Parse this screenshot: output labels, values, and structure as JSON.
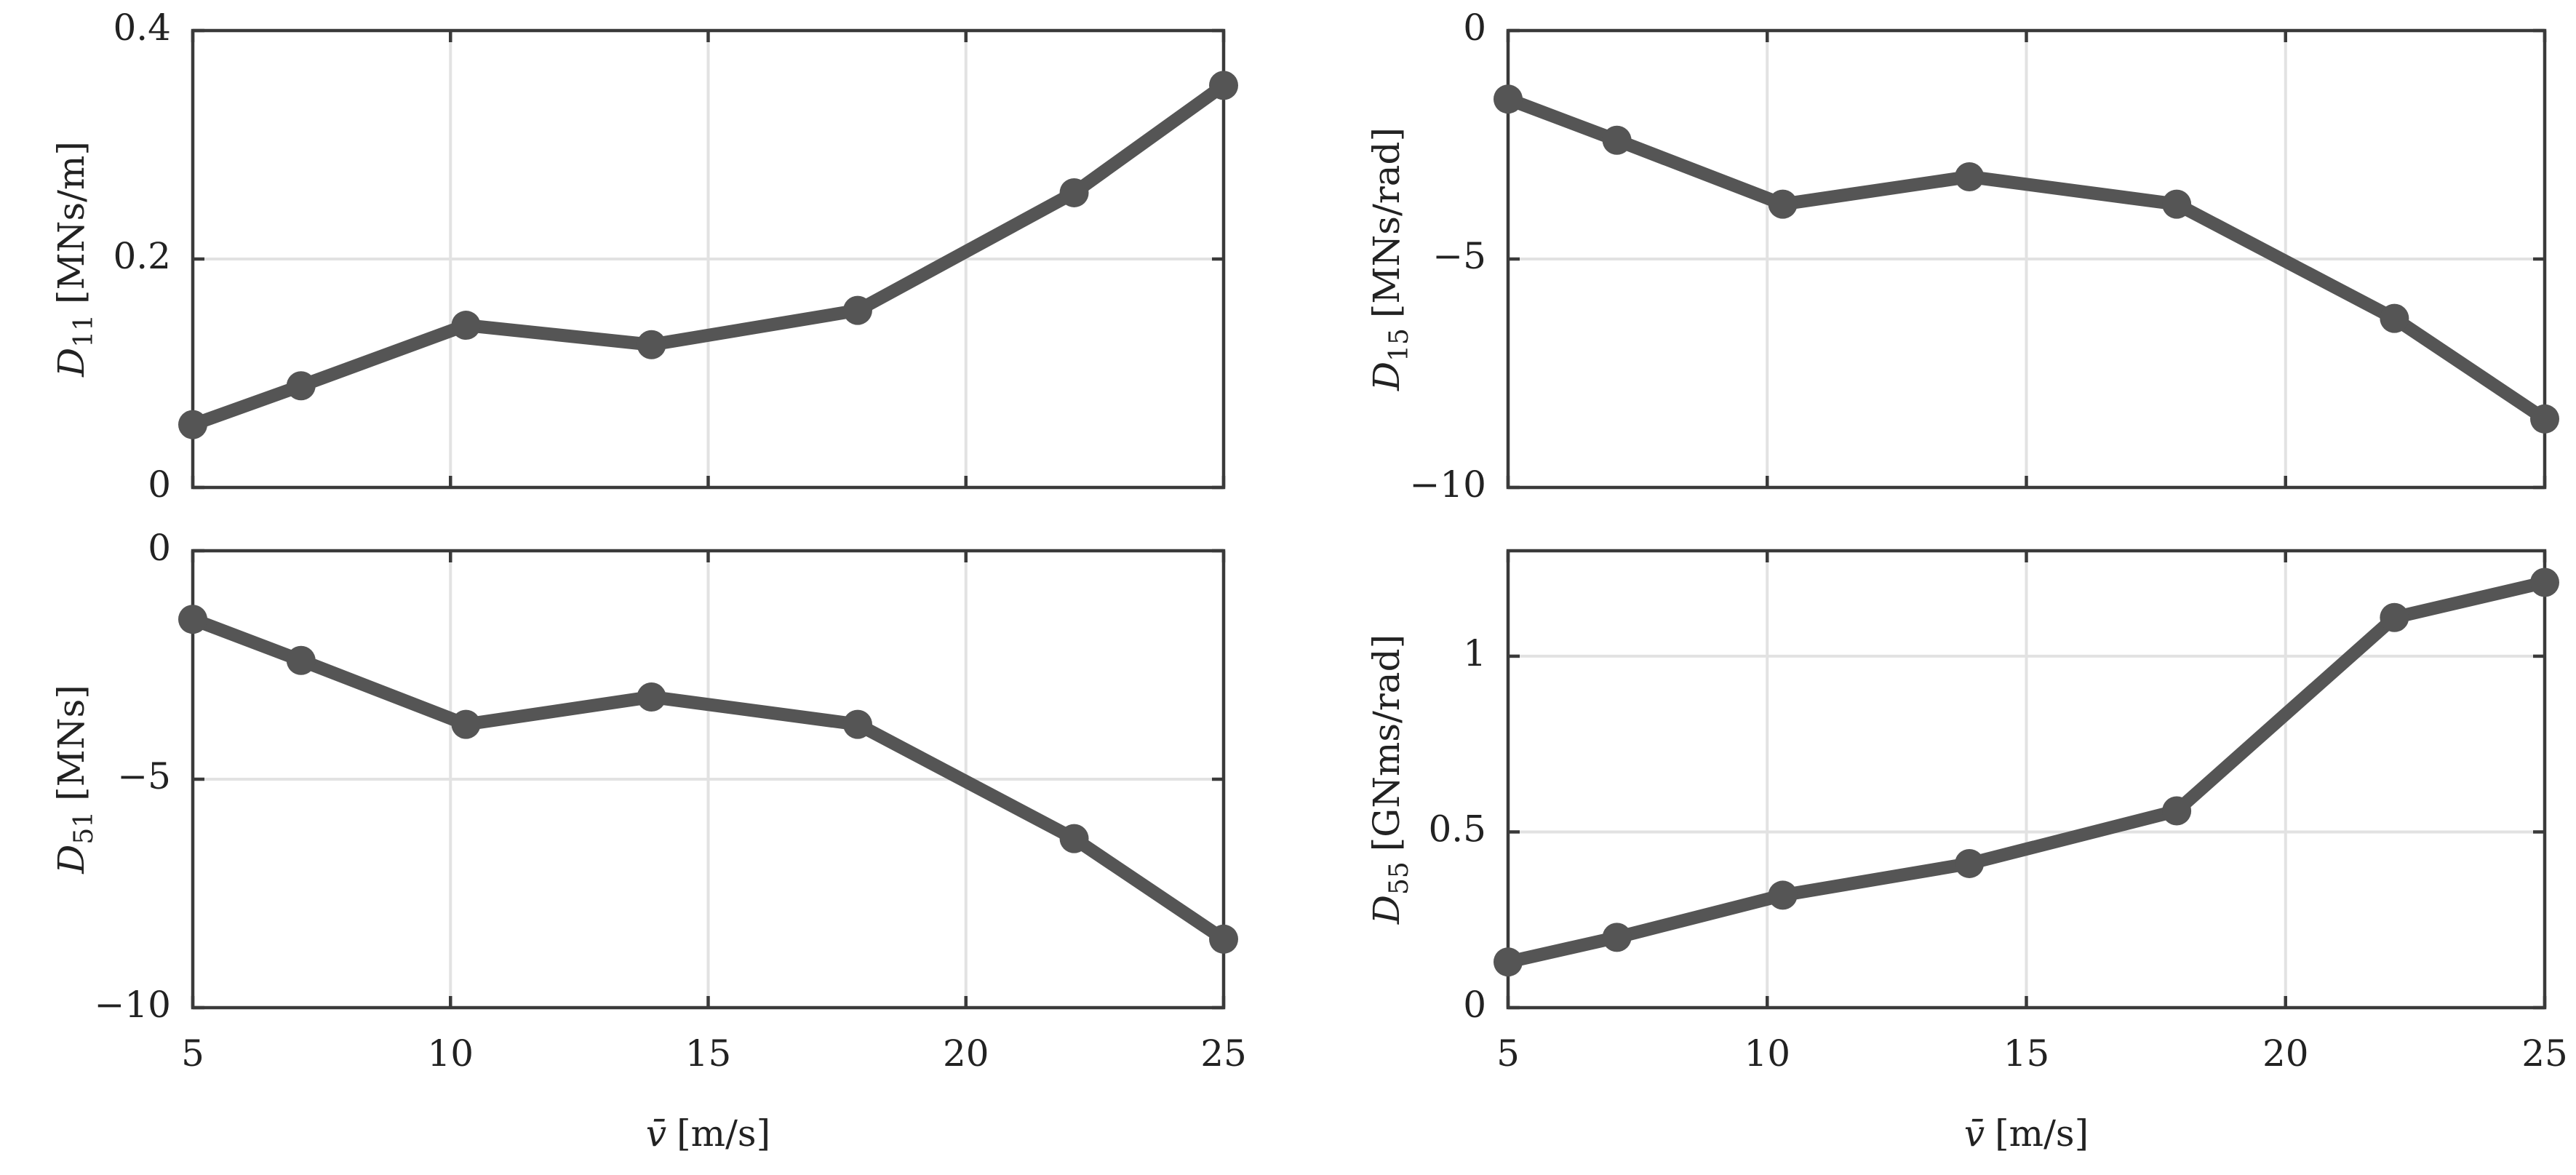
{
  "figure": {
    "background": "#ffffff",
    "series_color": "#555555"
  },
  "chart_data": [
    {
      "id": "d11",
      "type": "line",
      "position": "top-left",
      "ylabel": {
        "symbol": "D",
        "subscript": "11",
        "unit": "[MNs/m]"
      },
      "xlabel": "",
      "x": [
        5,
        7.1,
        10.3,
        13.9,
        17.9,
        22.1,
        25
      ],
      "y": [
        0.055,
        0.089,
        0.142,
        0.125,
        0.155,
        0.258,
        0.352
      ],
      "xlim": [
        5,
        25
      ],
      "ylim": [
        0,
        0.4
      ],
      "xticks": [
        5,
        10,
        15,
        20,
        25
      ],
      "yticks": [
        0,
        0.2,
        0.4
      ],
      "yticklabels": [
        "0",
        "0.2",
        "0.4"
      ],
      "show_xticklabels": false,
      "grid": true
    },
    {
      "id": "d15",
      "type": "line",
      "position": "top-right",
      "ylabel": {
        "symbol": "D",
        "subscript": "15",
        "unit": "[MNs/rad]"
      },
      "xlabel": "",
      "x": [
        5,
        7.1,
        10.3,
        13.9,
        17.9,
        22.1,
        25
      ],
      "y": [
        -1.5,
        -2.4,
        -3.8,
        -3.2,
        -3.8,
        -6.3,
        -8.5
      ],
      "xlim": [
        5,
        25
      ],
      "ylim": [
        -10,
        0
      ],
      "xticks": [
        5,
        10,
        15,
        20,
        25
      ],
      "yticks": [
        -10,
        -5,
        0
      ],
      "yticklabels": [
        "−10",
        "−5",
        "0"
      ],
      "show_xticklabels": false,
      "grid": true
    },
    {
      "id": "d51",
      "type": "line",
      "position": "bottom-left",
      "ylabel": {
        "symbol": "D",
        "subscript": "51",
        "unit": "[MNs]"
      },
      "xlabel": {
        "symbol": "v̄",
        "unit": "[m/s]"
      },
      "x": [
        5,
        7.1,
        10.3,
        13.9,
        17.9,
        22.1,
        25
      ],
      "y": [
        -1.5,
        -2.4,
        -3.8,
        -3.2,
        -3.8,
        -6.3,
        -8.5
      ],
      "xlim": [
        5,
        25
      ],
      "ylim": [
        -10,
        0
      ],
      "xticks": [
        5,
        10,
        15,
        20,
        25
      ],
      "xticklabels": [
        "5",
        "10",
        "15",
        "20",
        "25"
      ],
      "yticks": [
        -10,
        -5,
        0
      ],
      "yticklabels": [
        "−10",
        "−5",
        "0"
      ],
      "show_xticklabels": true,
      "grid": true
    },
    {
      "id": "d55",
      "type": "line",
      "position": "bottom-right",
      "ylabel": {
        "symbol": "D",
        "subscript": "55",
        "unit": "[GNms/rad]"
      },
      "xlabel": {
        "symbol": "v̄",
        "unit": "[m/s]"
      },
      "x": [
        5,
        7.1,
        10.3,
        13.9,
        17.9,
        22.1,
        25
      ],
      "y": [
        0.13,
        0.2,
        0.32,
        0.41,
        0.56,
        1.11,
        1.21
      ],
      "xlim": [
        5,
        25
      ],
      "ylim": [
        0,
        1.3
      ],
      "xticks": [
        5,
        10,
        15,
        20,
        25
      ],
      "xticklabels": [
        "5",
        "10",
        "15",
        "20",
        "25"
      ],
      "yticks": [
        0,
        0.5,
        1
      ],
      "yticklabels": [
        "0",
        "0.5",
        "1"
      ],
      "show_xticklabels": true,
      "grid": true
    }
  ]
}
